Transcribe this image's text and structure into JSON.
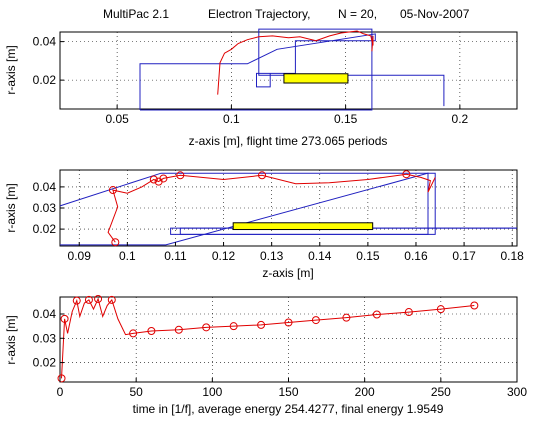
{
  "title": {
    "program": "MultiPac 2.1",
    "plot": "Electron Trajectory,",
    "n": "N = 20,",
    "date": "05-Nov-2007"
  },
  "colors": {
    "geometry": "#2020c0",
    "trajectory": "#e00000",
    "box": "#ffff00",
    "grid": "#000000"
  },
  "chart_data": [
    {
      "type": "line",
      "panel": "top",
      "xlabel": "z-axis [m],  flight time 273.065 periods",
      "ylabel": "r-axis [m]",
      "xlim": [
        0.025,
        0.225
      ],
      "ylim": [
        0.005,
        0.045
      ],
      "xticks": [
        0.05,
        0.1,
        0.15,
        0.2
      ],
      "xtick_labels": [
        "0.05",
        "0.1",
        "0.15",
        "0.2"
      ],
      "yticks": [
        0.02,
        0.04
      ],
      "ytick_labels": [
        "0.02",
        "0.04"
      ],
      "grid": true,
      "geometry": [
        {
          "x": [
            0.06,
            0.06,
            0.107,
            0.12,
            0.163,
            0.163,
            0.128,
            0.128,
            0.111,
            0.111,
            0.117,
            0.117,
            0.127,
            0.127,
            0.175,
            0.193,
            0.193
          ]
        },
        {
          "x": [
            0.06,
            0.1615,
            0.1615,
            0.112,
            0.112,
            0.127
          ]
        }
      ],
      "box": {
        "x": [
          0.123,
          0.151
        ],
        "y": [
          0.0185,
          0.0233
        ]
      },
      "trajectory": [
        [
          0.094,
          0.0125
        ],
        [
          0.095,
          0.029
        ],
        [
          0.097,
          0.034
        ],
        [
          0.1,
          0.036
        ],
        [
          0.103,
          0.039
        ],
        [
          0.107,
          0.041
        ],
        [
          0.112,
          0.0425
        ],
        [
          0.118,
          0.043
        ],
        [
          0.125,
          0.042
        ],
        [
          0.13,
          0.0425
        ],
        [
          0.137,
          0.0405
        ],
        [
          0.143,
          0.043
        ],
        [
          0.148,
          0.0445
        ],
        [
          0.155,
          0.0455
        ],
        [
          0.158,
          0.044
        ],
        [
          0.161,
          0.043
        ],
        [
          0.162,
          0.038
        ],
        [
          0.162,
          0.043
        ],
        [
          0.1615,
          0.035
        ]
      ]
    },
    {
      "type": "line",
      "panel": "middle",
      "xlabel": "z-axis [m]",
      "ylabel": "r-axis [m]",
      "xlim": [
        0.086,
        0.181
      ],
      "ylim": [
        0.012,
        0.048
      ],
      "xticks": [
        0.09,
        0.1,
        0.11,
        0.12,
        0.13,
        0.14,
        0.15,
        0.16,
        0.17,
        0.18
      ],
      "xtick_labels": [
        "0.09",
        "0.1",
        "0.11",
        "0.12",
        "0.13",
        "0.14",
        "0.15",
        "0.16",
        "0.17",
        "0.18"
      ],
      "yticks": [
        0.02,
        0.03,
        0.04
      ],
      "ytick_labels": [
        "0.02",
        "0.03",
        "0.04"
      ],
      "grid": true,
      "geometry": [
        {
          "x": [
            0.086,
            0.107,
            0.164,
            0.164,
            0.109,
            0.109,
            0.181
          ]
        },
        {
          "x": [
            0.086,
            0.108,
            0.1625,
            0.1625,
            0.111,
            0.111,
            0.181
          ]
        }
      ],
      "box": {
        "x": [
          0.122,
          0.151
        ],
        "y": [
          0.0198,
          0.023
        ]
      },
      "trajectory": [
        [
          0.0975,
          0.0138
        ],
        [
          0.096,
          0.0185
        ],
        [
          0.098,
          0.0305
        ],
        [
          0.097,
          0.0385
        ],
        [
          0.1,
          0.037
        ],
        [
          0.103,
          0.04
        ],
        [
          0.1055,
          0.0435
        ],
        [
          0.1065,
          0.0425
        ],
        [
          0.1075,
          0.044
        ],
        [
          0.111,
          0.0455
        ],
        [
          0.12,
          0.0435
        ],
        [
          0.128,
          0.0455
        ],
        [
          0.135,
          0.0415
        ],
        [
          0.142,
          0.042
        ],
        [
          0.15,
          0.0435
        ],
        [
          0.158,
          0.046
        ],
        [
          0.161,
          0.0445
        ],
        [
          0.163,
          0.043
        ],
        [
          0.1625,
          0.0375
        ],
        [
          0.164,
          0.0445
        ]
      ],
      "markers": [
        [
          0.0975,
          0.0138
        ],
        [
          0.097,
          0.0385
        ],
        [
          0.1055,
          0.0435
        ],
        [
          0.1065,
          0.0425
        ],
        [
          0.1075,
          0.044
        ],
        [
          0.111,
          0.0455
        ],
        [
          0.128,
          0.0455
        ],
        [
          0.158,
          0.046
        ]
      ]
    },
    {
      "type": "line",
      "panel": "bottom",
      "xlabel": "time in [1/f], average energy 254.4277, final energy 1.9549",
      "ylabel": "r-axis [m]",
      "xlim": [
        0,
        300
      ],
      "ylim": [
        0.012,
        0.047
      ],
      "xticks": [
        0,
        50,
        100,
        150,
        200,
        250,
        300
      ],
      "xtick_labels": [
        "0",
        "50",
        "100",
        "150",
        "200",
        "250",
        "300"
      ],
      "yticks": [
        0.02,
        0.03,
        0.04
      ],
      "ytick_labels": [
        "0.02",
        "0.03",
        "0.04"
      ],
      "grid": true,
      "x": [
        1,
        3,
        5,
        8,
        11,
        13,
        16,
        19,
        22,
        25,
        28,
        31,
        34,
        38,
        43,
        48,
        60,
        78,
        96,
        114,
        132,
        150,
        168,
        188,
        208,
        229,
        250,
        272
      ],
      "y": [
        0.0135,
        0.038,
        0.032,
        0.041,
        0.0455,
        0.039,
        0.0445,
        0.0458,
        0.042,
        0.0462,
        0.039,
        0.0435,
        0.0458,
        0.038,
        0.0315,
        0.032,
        0.033,
        0.0335,
        0.0345,
        0.035,
        0.0355,
        0.0365,
        0.0375,
        0.0385,
        0.0398,
        0.0408,
        0.042,
        0.0435
      ],
      "markers": [
        [
          1,
          0.0135
        ],
        [
          3,
          0.038
        ],
        [
          11,
          0.0455
        ],
        [
          19,
          0.0458
        ],
        [
          25,
          0.0462
        ],
        [
          34,
          0.0458
        ],
        [
          48,
          0.032
        ],
        [
          60,
          0.033
        ],
        [
          78,
          0.0335
        ],
        [
          96,
          0.0345
        ],
        [
          114,
          0.035
        ],
        [
          132,
          0.0355
        ],
        [
          150,
          0.0365
        ],
        [
          168,
          0.0375
        ],
        [
          188,
          0.0385
        ],
        [
          208,
          0.0398
        ],
        [
          229,
          0.0408
        ],
        [
          250,
          0.042
        ],
        [
          272,
          0.0435
        ]
      ]
    }
  ]
}
